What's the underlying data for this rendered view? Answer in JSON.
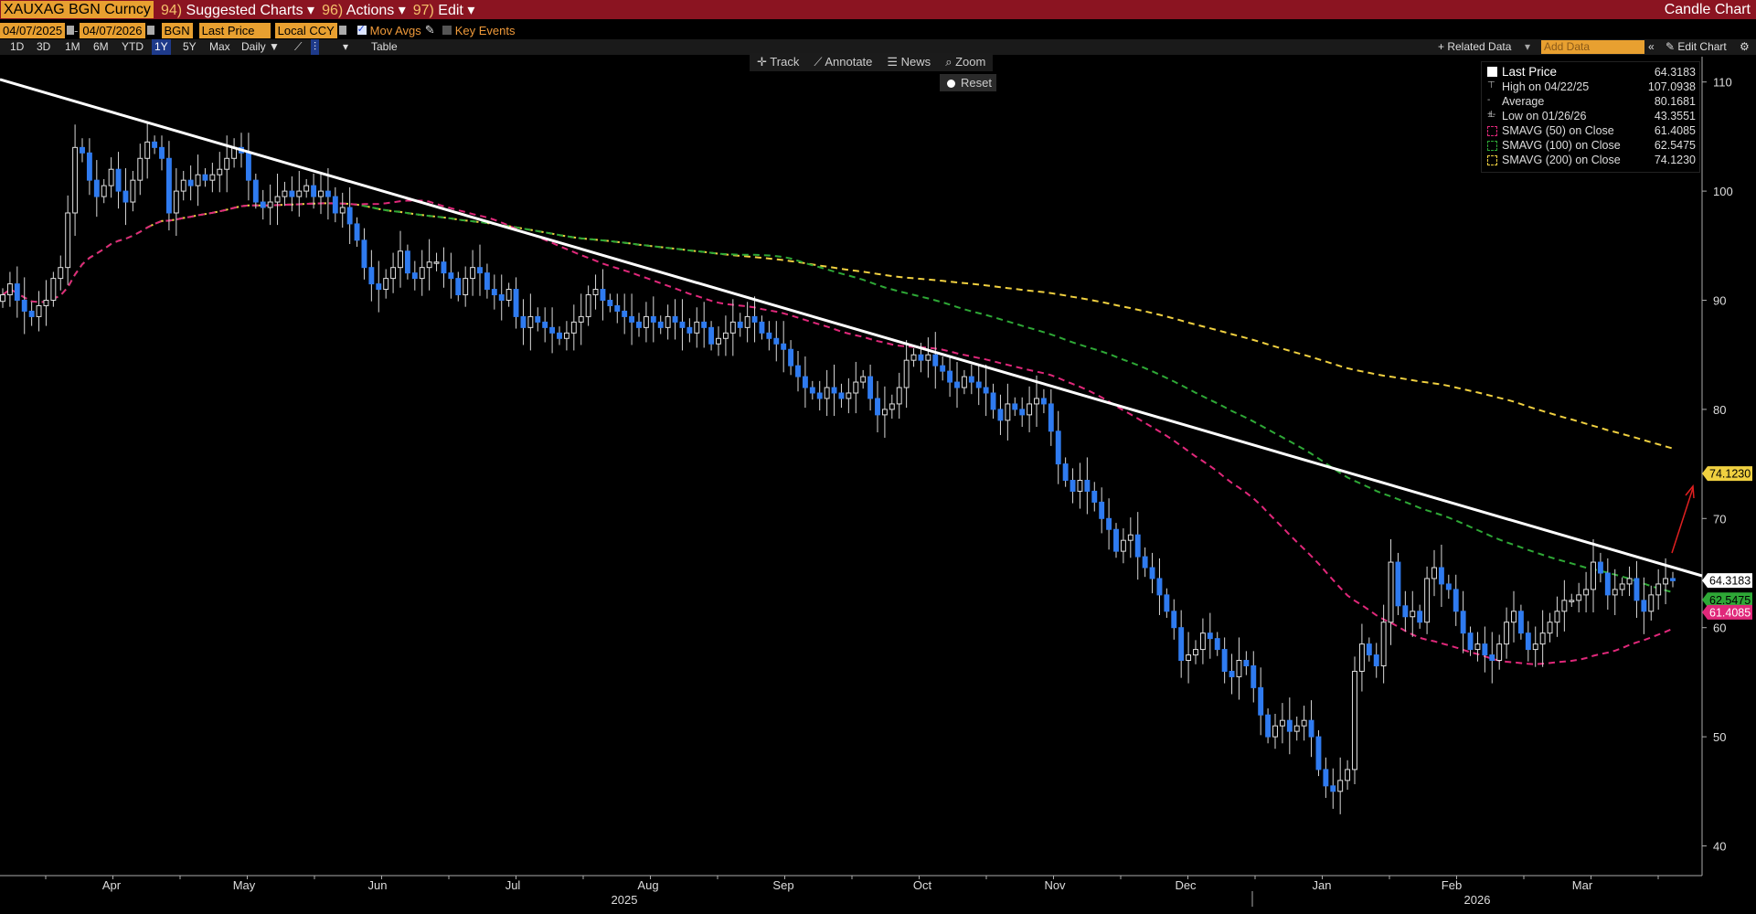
{
  "header": {
    "ticker": "XAUXAG BGN Curncy",
    "menus": [
      {
        "num": "94)",
        "label": "Suggested Charts"
      },
      {
        "num": "96)",
        "label": "Actions"
      },
      {
        "num": "97)",
        "label": "Edit"
      }
    ],
    "chart_type_label": "Candle Chart"
  },
  "controls": {
    "start_date": "04/07/2025",
    "end_date": "04/07/2026",
    "source": "BGN",
    "field": "Last Price",
    "currency": "Local CCY",
    "mov_avgs": "Mov Avgs",
    "key_events": "Key Events",
    "ranges": [
      "1D",
      "3D",
      "1M",
      "6M",
      "YTD",
      "1Y",
      "5Y",
      "Max"
    ],
    "selected_range": "1Y",
    "periodicity": "Daily",
    "table": "Table",
    "related_data": "+ Related Data",
    "add_data_placeholder": "Add Data",
    "edit_chart": "Edit Chart",
    "track": "Track",
    "annotate": "Annotate",
    "news": "News",
    "zoom": "Zoom",
    "reset": "Reset"
  },
  "legend": {
    "rows": [
      {
        "label": "Last Price",
        "value": "64.3183",
        "color": "#ffffff"
      },
      {
        "label": "High on 04/22/25",
        "value": "107.0938",
        "color": "#cccccc"
      },
      {
        "label": "Average",
        "value": "80.1681",
        "color": "#cccccc"
      },
      {
        "label": "Low on 01/26/26",
        "value": "43.3551",
        "color": "#cccccc"
      },
      {
        "label": "SMAVG (50)  on Close",
        "value": "61.4085",
        "color": "#e0287a"
      },
      {
        "label": "SMAVG (100)  on Close",
        "value": "62.5475",
        "color": "#2ea836"
      },
      {
        "label": "SMAVG (200)  on Close",
        "value": "74.1230",
        "color": "#f0d040"
      }
    ]
  },
  "chart_data": {
    "type": "candlestick",
    "x_labels": [
      "Apr",
      "May",
      "Jun",
      "Jul",
      "Aug",
      "Sep",
      "Oct",
      "Nov",
      "Dec",
      "Jan",
      "Feb",
      "Mar"
    ],
    "year_labels": [
      "2025",
      "2026"
    ],
    "ylim": [
      38,
      112
    ],
    "y_ticks": [
      40,
      50,
      60,
      70,
      80,
      90,
      100,
      110
    ],
    "price_marker": {
      "value": 64.3183,
      "label": "64.3183",
      "color": "#ffffff"
    },
    "sma200_marker": {
      "value": 74.123,
      "label": "74.1230",
      "color": "#f0d040"
    },
    "sma100_marker": {
      "value": 62.5475,
      "label": "62.5475",
      "color": "#2ea836"
    },
    "sma50_marker": {
      "value": 61.4085,
      "label": "61.4085",
      "color": "#e0287a"
    },
    "close": [
      90.5,
      91.5,
      90,
      89,
      88.5,
      89.5,
      90,
      92,
      93,
      98,
      104,
      103.5,
      101,
      99.5,
      100.5,
      102,
      100,
      99,
      101,
      103,
      104.5,
      104,
      103,
      98,
      100,
      101,
      100.5,
      101.5,
      101,
      101.5,
      102,
      103,
      104,
      103.5,
      101,
      99,
      98.5,
      99,
      99.5,
      100,
      99.5,
      100,
      100.5,
      99.5,
      100,
      99.5,
      98,
      98.5,
      97,
      95.5,
      93,
      91.5,
      91,
      92,
      93,
      94.5,
      92.5,
      92,
      93,
      93.5,
      93.5,
      92.5,
      92,
      90.5,
      92,
      93,
      92.5,
      91,
      90.5,
      90,
      91,
      88.5,
      87.5,
      88.5,
      88,
      87.5,
      87,
      86.5,
      87,
      88,
      88.5,
      90.5,
      91,
      90,
      89.5,
      89,
      88.5,
      88,
      87.5,
      88.5,
      88,
      87.5,
      88.5,
      88,
      87.5,
      87,
      88,
      87.5,
      86,
      86.5,
      87,
      88,
      87.5,
      88.5,
      88,
      87,
      86.5,
      86,
      85.5,
      84,
      83,
      82,
      81.5,
      81,
      82,
      81.5,
      81,
      81.5,
      82.5,
      83,
      81,
      79.5,
      80,
      80.5,
      82,
      84.5,
      85,
      84.5,
      85,
      84,
      83.5,
      82.5,
      82,
      83,
      82.5,
      82,
      81.5,
      80,
      79,
      80.5,
      80,
      79.5,
      80.5,
      81,
      80.5,
      78,
      75,
      73.5,
      72.5,
      73.5,
      72.5,
      71.5,
      70,
      69,
      67,
      68,
      68.5,
      66.5,
      65.5,
      64.5,
      63,
      61.5,
      60,
      57,
      57.5,
      58,
      59.5,
      59,
      58,
      56,
      55.5,
      57,
      56.5,
      54.5,
      52,
      50,
      51,
      51.5,
      50.5,
      51,
      51.5,
      50,
      47,
      45.5,
      45,
      46,
      47,
      56,
      58.5,
      57.5,
      56.5,
      60.5,
      66,
      62,
      61,
      61.5,
      60.5,
      64.5,
      65.5,
      64,
      63.5,
      61.5,
      59.5,
      58,
      58.5,
      57.5,
      57,
      58.5,
      60.5,
      61.5,
      59.5,
      58,
      58.5,
      59.5,
      60.5,
      61.5,
      62.5,
      62.5,
      63,
      63.5,
      66,
      65,
      63,
      63.5,
      64,
      64.5,
      62.5,
      61.5,
      63,
      64,
      64.5,
      64.3
    ]
  }
}
